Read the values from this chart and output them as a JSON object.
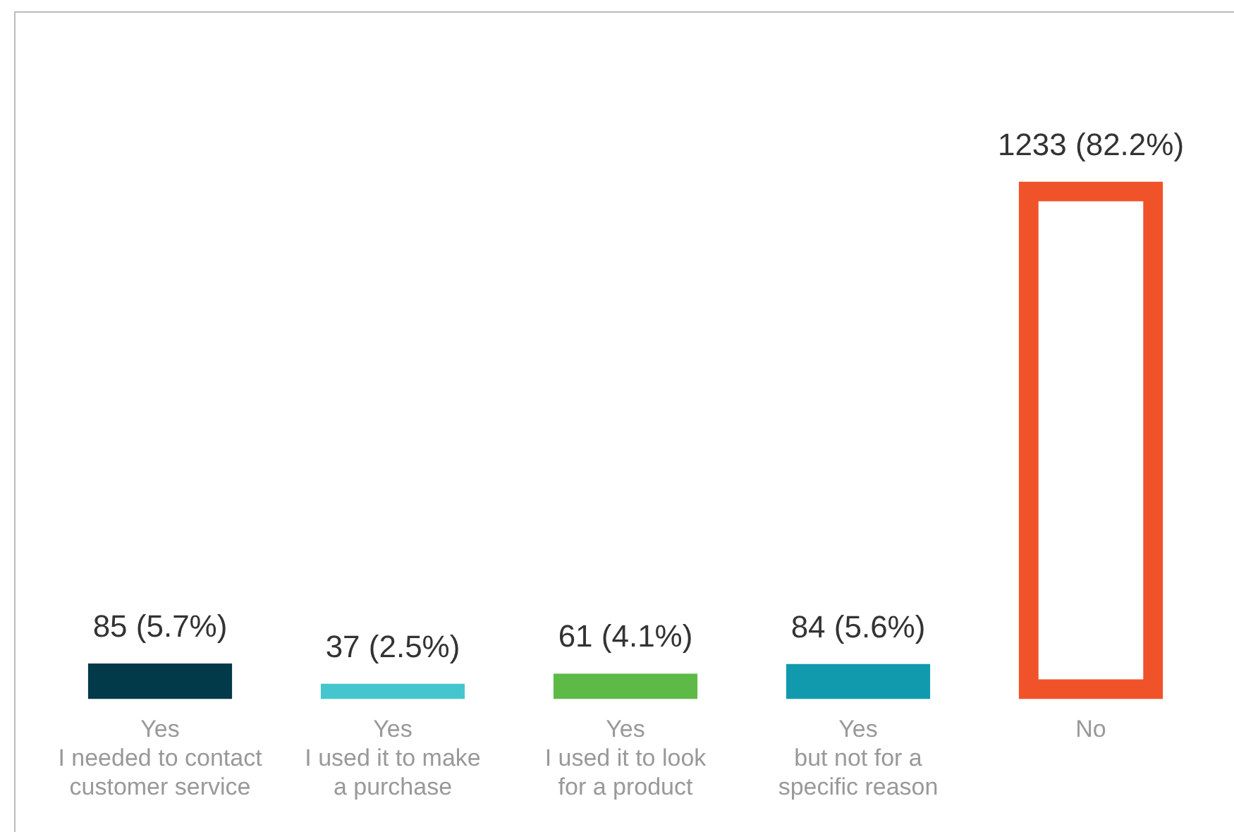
{
  "chart_data": {
    "type": "bar",
    "categories": [
      "Yes\nI needed to contact\ncustomer service",
      "Yes\nI used it to make\na purchase",
      "Yes\nI used it to look\nfor a product",
      "Yes\nbut not for a\nspecific reason",
      "No"
    ],
    "values": [
      85,
      37,
      61,
      84,
      1233
    ],
    "value_labels": [
      "85 (5.7%)",
      "37 (2.5%)",
      "61 (4.1%)",
      "84 (5.6%)",
      "1233 (82.2%)"
    ],
    "colors": [
      "#023a4a",
      "#45c6cf",
      "#5dba47",
      "#119aae",
      "#f0522a"
    ],
    "grid": false,
    "legend": false
  }
}
